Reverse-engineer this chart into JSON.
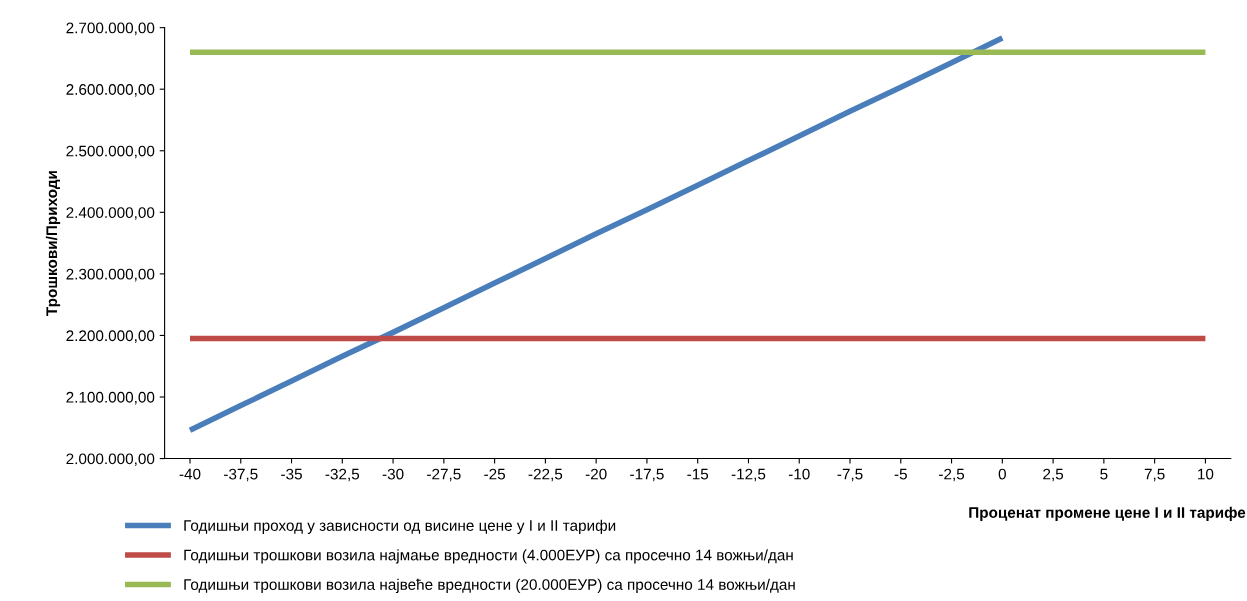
{
  "chart_data": {
    "type": "line",
    "xlabel": "Проценат промене цене I и II тарифе",
    "ylabel": "Трошкови/Приходи",
    "categories": [
      "-40",
      "-37,5",
      "-35",
      "-32,5",
      "-30",
      "-27,5",
      "-25",
      "-22,5",
      "-20",
      "-17,5",
      "-15",
      "-12,5",
      "-10",
      "-7,5",
      "-5",
      "-2,5",
      "0",
      "2,5",
      "5",
      "7,5",
      "10"
    ],
    "series": [
      {
        "name": "Годишњи проход у зависности од висине цене у I и II тарифи",
        "color": "#4a7ebb",
        "values": [
          2046000,
          2086000,
          2126000,
          2166000,
          2205000,
          2245000,
          2285000,
          2325000,
          2365000,
          2404000,
          2444000,
          2484000,
          2524000,
          2564000,
          2603000,
          2643000,
          2683000,
          null,
          null,
          null,
          null
        ]
      },
      {
        "name": "Годишњи трошкови возила најмање вредности (4.000ЕУР) са просечно 14 вожњи/дан",
        "color": "#be4b48",
        "values": [
          2195000,
          2195000,
          2195000,
          2195000,
          2195000,
          2195000,
          2195000,
          2195000,
          2195000,
          2195000,
          2195000,
          2195000,
          2195000,
          2195000,
          2195000,
          2195000,
          2195000,
          2195000,
          2195000,
          2195000,
          2195000
        ]
      },
      {
        "name": "Годишњи трошкови возила највеће вредности (20.000ЕУР) са просечно 14 вожњи/дан",
        "color": "#98b954",
        "values": [
          2660000,
          2660000,
          2660000,
          2660000,
          2660000,
          2660000,
          2660000,
          2660000,
          2660000,
          2660000,
          2660000,
          2660000,
          2660000,
          2660000,
          2660000,
          2660000,
          2660000,
          2660000,
          2660000,
          2660000,
          2660000
        ]
      }
    ],
    "ylim": [
      2000000,
      2700000
    ],
    "yticks": [
      {
        "value": 2000000,
        "label": "2.000.000,00"
      },
      {
        "value": 2100000,
        "label": "2.100.000,00"
      },
      {
        "value": 2200000,
        "label": "2.200.000,00"
      },
      {
        "value": 2300000,
        "label": "2.300.000,00"
      },
      {
        "value": 2400000,
        "label": "2.400.000,00"
      },
      {
        "value": 2500000,
        "label": "2.500.000,00"
      },
      {
        "value": 2600000,
        "label": "2.600.000,00"
      },
      {
        "value": 2700000,
        "label": "2.700.000,00"
      }
    ],
    "grid": false,
    "legend": "bottom left",
    "marker": "none",
    "line_style": "solid"
  }
}
